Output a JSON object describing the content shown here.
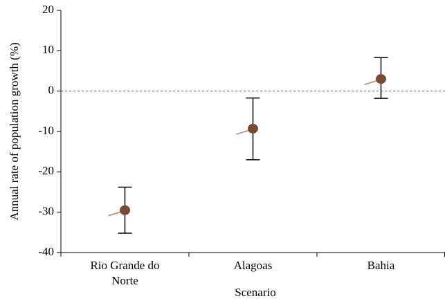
{
  "chart_data": {
    "type": "errorbar",
    "x_label": "Scenario",
    "y_label": "Annual rate of population growth (%)",
    "categories": [
      "Rio Grande do Norte",
      "Alagoas",
      "Bahia"
    ],
    "values": [
      -29.5,
      -9.3,
      3
    ],
    "lower": [
      -35.2,
      -17,
      -1.8
    ],
    "upper": [
      -23.8,
      -1.7,
      8.3
    ],
    "color": "#7a4a35",
    "reference_line": 0,
    "ylim": [
      -40,
      20
    ],
    "yticks": [
      -40,
      -30,
      -20,
      -10,
      0,
      10,
      20
    ]
  }
}
